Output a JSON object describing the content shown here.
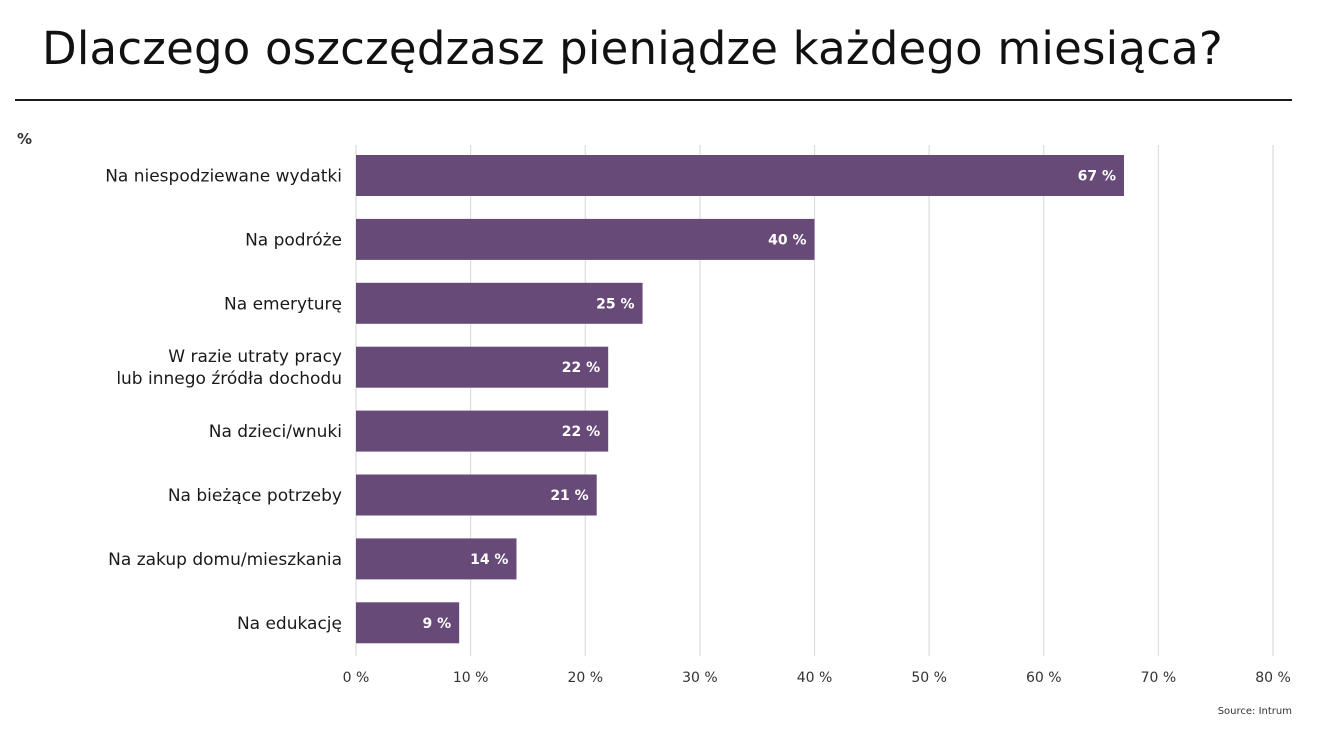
{
  "page": {
    "title": "Dlaczego oszczędzasz pieniądze każdego miesiąca?",
    "unit": "%",
    "source": "Source: Intrum"
  },
  "colors": {
    "bar": "#684a78",
    "grid": "#dddde0",
    "title_rule": "#1a1a1a"
  },
  "chart_data": {
    "type": "bar",
    "orientation": "horizontal",
    "categories": [
      [
        "Na niespodziewane wydatki"
      ],
      [
        "Na podróże"
      ],
      [
        "Na emeryturę"
      ],
      [
        "W razie utraty pracy",
        "lub innego źródła dochodu"
      ],
      [
        "Na dzieci/wnuki"
      ],
      [
        "Na bieżące potrzeby"
      ],
      [
        "Na zakup domu/mieszkania"
      ],
      [
        "Na edukację"
      ]
    ],
    "values": [
      67,
      40,
      25,
      22,
      22,
      21,
      14,
      9
    ],
    "value_labels": [
      "67 %",
      "40 %",
      "25 %",
      "22 %",
      "22 %",
      "21 %",
      "14 %",
      "9 %"
    ],
    "xlim": [
      0,
      80
    ],
    "xticks": [
      0,
      10,
      20,
      30,
      40,
      50,
      60,
      70,
      80
    ],
    "xtick_labels": [
      "0 %",
      "10 %",
      "20 %",
      "30 %",
      "40 %",
      "50 %",
      "60 %",
      "70 %",
      "80 %"
    ],
    "grid": true,
    "legend": "none"
  }
}
